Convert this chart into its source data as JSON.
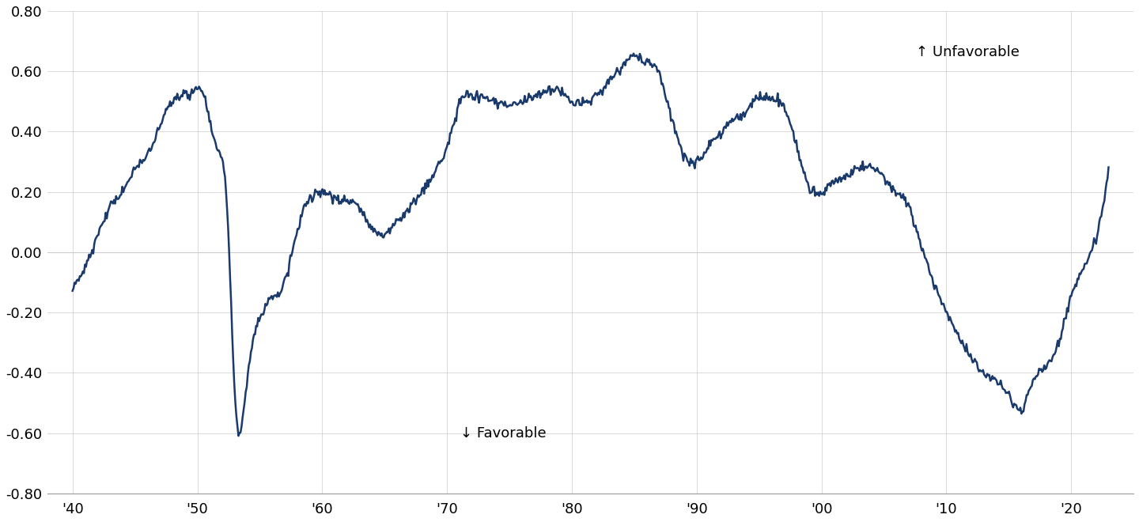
{
  "title": "",
  "line_color": "#1a3a6b",
  "line_width": 1.8,
  "background_color": "#ffffff",
  "ylim": [
    -0.8,
    0.8
  ],
  "yticks": [
    -0.8,
    -0.6,
    -0.4,
    -0.2,
    0.0,
    0.2,
    0.4,
    0.6,
    0.8
  ],
  "xtick_labels": [
    "'40",
    "'50",
    "'60",
    "'70",
    "'80",
    "'90",
    "'00",
    "'10",
    "'20"
  ],
  "xtick_positions": [
    1940,
    1950,
    1960,
    1970,
    1980,
    1990,
    2000,
    2010,
    2020
  ],
  "annotation_unfavorable": "↑ Unfavorable",
  "annotation_favorable": "↓ Favorable",
  "grid_color": "#cccccc",
  "annotation_fontsize": 13,
  "tick_fontsize": 13
}
